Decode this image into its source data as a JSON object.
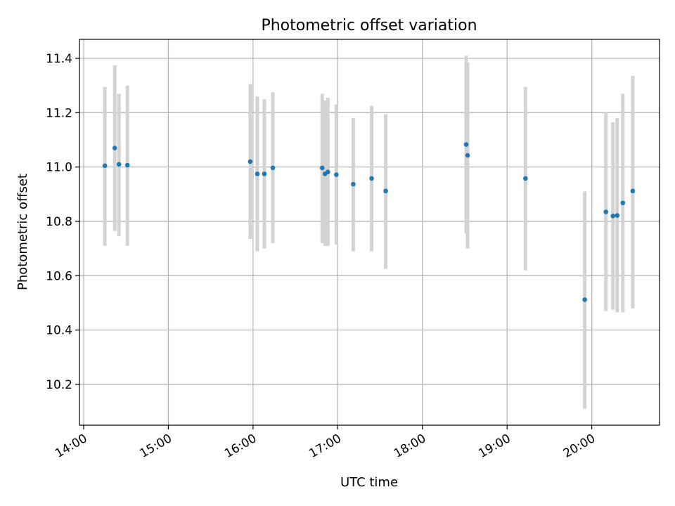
{
  "chart_data": {
    "type": "scatter",
    "title": "Photometric offset variation",
    "xlabel": "UTC time",
    "ylabel": "Photometric offset",
    "xlim": [
      "13:57",
      "20:48"
    ],
    "ylim": [
      10.05,
      11.47
    ],
    "xticks": [
      "14:00",
      "15:00",
      "16:00",
      "17:00",
      "18:00",
      "19:00",
      "20:00"
    ],
    "yticks": [
      "10.2",
      "10.4",
      "10.6",
      "10.8",
      "11.0",
      "11.2",
      "11.4"
    ],
    "grid": true,
    "colors": {
      "points": "#1f77b4",
      "errorbars": "#d3d3d3",
      "grid": "#b0b0b0"
    },
    "series": [
      {
        "points": [
          {
            "x": "14:15",
            "y": 11.005,
            "ylow": 10.71,
            "yhigh": 11.295
          },
          {
            "x": "14:22",
            "y": 11.07,
            "ylow": 10.765,
            "yhigh": 11.375
          },
          {
            "x": "14:25",
            "y": 11.01,
            "ylow": 10.745,
            "yhigh": 11.27
          },
          {
            "x": "14:31",
            "y": 11.007,
            "ylow": 10.71,
            "yhigh": 11.3
          },
          {
            "x": "15:58",
            "y": 11.02,
            "ylow": 10.735,
            "yhigh": 11.305
          },
          {
            "x": "16:03",
            "y": 10.975,
            "ylow": 10.69,
            "yhigh": 11.26
          },
          {
            "x": "16:08",
            "y": 10.975,
            "ylow": 10.7,
            "yhigh": 11.25
          },
          {
            "x": "16:14",
            "y": 10.997,
            "ylow": 10.72,
            "yhigh": 11.275
          },
          {
            "x": "16:49",
            "y": 10.997,
            "ylow": 10.72,
            "yhigh": 11.27
          },
          {
            "x": "16:51",
            "y": 10.975,
            "ylow": 10.71,
            "yhigh": 11.245
          },
          {
            "x": "16:53",
            "y": 10.982,
            "ylow": 10.71,
            "yhigh": 11.255
          },
          {
            "x": "16:59",
            "y": 10.972,
            "ylow": 10.715,
            "yhigh": 11.23
          },
          {
            "x": "17:11",
            "y": 10.937,
            "ylow": 10.69,
            "yhigh": 11.18
          },
          {
            "x": "17:24",
            "y": 10.958,
            "ylow": 10.69,
            "yhigh": 11.225
          },
          {
            "x": "17:34",
            "y": 10.912,
            "ylow": 10.625,
            "yhigh": 11.195
          },
          {
            "x": "18:31",
            "y": 11.083,
            "ylow": 10.755,
            "yhigh": 11.41
          },
          {
            "x": "18:32",
            "y": 11.043,
            "ylow": 10.7,
            "yhigh": 11.385
          },
          {
            "x": "19:13",
            "y": 10.958,
            "ylow": 10.62,
            "yhigh": 11.295
          },
          {
            "x": "19:55",
            "y": 10.512,
            "ylow": 10.11,
            "yhigh": 10.91
          },
          {
            "x": "20:10",
            "y": 10.835,
            "ylow": 10.47,
            "yhigh": 11.2
          },
          {
            "x": "20:15",
            "y": 10.82,
            "ylow": 10.475,
            "yhigh": 11.165
          },
          {
            "x": "20:18",
            "y": 10.822,
            "ylow": 10.465,
            "yhigh": 11.18
          },
          {
            "x": "20:22",
            "y": 10.868,
            "ylow": 10.465,
            "yhigh": 11.27
          },
          {
            "x": "20:29",
            "y": 10.912,
            "ylow": 10.48,
            "yhigh": 11.335
          }
        ]
      }
    ]
  }
}
